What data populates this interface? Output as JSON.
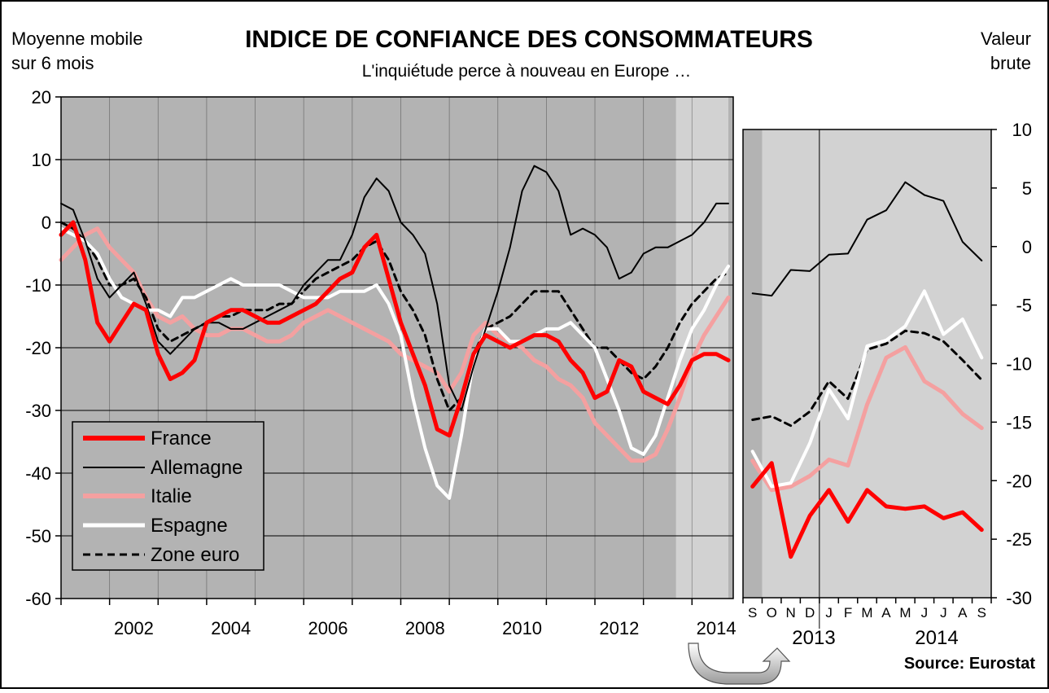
{
  "header": {
    "title": "INDICE DE CONFIANCE DES CONSOMMATEURS",
    "subtitle": "L'inquiétude perce à nouveau en Europe …",
    "left_note": [
      "Moyenne mobile",
      "sur 6 mois"
    ],
    "right_note": [
      "Valeur",
      "brute"
    ],
    "source": "Source: Eurostat"
  },
  "colors": {
    "france": "#ff0000",
    "allemagne": "#000000",
    "italie": "#f4a0a0",
    "espagne": "#ffffff",
    "zone_euro": "#000000",
    "plot_bg": "#b3b3b3",
    "plot_bg_highlight": "#d2d2d2"
  },
  "chart_data": [
    {
      "type": "line",
      "id": "main",
      "ylim": [
        -60,
        20
      ],
      "yticks": [
        20,
        10,
        0,
        -10,
        -20,
        -30,
        -40,
        -50,
        -60
      ],
      "xlim": [
        2001.0,
        2014.85
      ],
      "xticks": [
        "2002",
        "2004",
        "2006",
        "2008",
        "2010",
        "2012",
        "2014"
      ],
      "highlight_from": 2013.67,
      "grid": true,
      "legend": "bottom-left",
      "series": [
        {
          "name": "France",
          "key": "france",
          "style": "thick",
          "x": [
            2001.0,
            2001.25,
            2001.5,
            2001.75,
            2002.0,
            2002.25,
            2002.5,
            2002.75,
            2003.0,
            2003.25,
            2003.5,
            2003.75,
            2004.0,
            2004.25,
            2004.5,
            2004.75,
            2005.0,
            2005.25,
            2005.5,
            2005.75,
            2006.0,
            2006.25,
            2006.5,
            2006.75,
            2007.0,
            2007.25,
            2007.5,
            2007.75,
            2008.0,
            2008.25,
            2008.5,
            2008.75,
            2009.0,
            2009.25,
            2009.5,
            2009.75,
            2010.0,
            2010.25,
            2010.5,
            2010.75,
            2011.0,
            2011.25,
            2011.5,
            2011.75,
            2012.0,
            2012.25,
            2012.5,
            2012.75,
            2013.0,
            2013.25,
            2013.5,
            2013.75,
            2014.0,
            2014.25,
            2014.5,
            2014.75
          ],
          "y": [
            -2,
            0,
            -6,
            -16,
            -19,
            -16,
            -13,
            -14,
            -21,
            -25,
            -24,
            -22,
            -16,
            -15,
            -14,
            -14,
            -15,
            -16,
            -16,
            -15,
            -14,
            -13,
            -11,
            -9,
            -8,
            -4,
            -2,
            -9,
            -16,
            -21,
            -26,
            -33,
            -34,
            -28,
            -21,
            -18,
            -19,
            -20,
            -19,
            -18,
            -18,
            -19,
            -22,
            -24,
            -28,
            -27,
            -22,
            -23,
            -27,
            -28,
            -29,
            -26,
            -22,
            -21,
            -21,
            -22
          ]
        },
        {
          "name": "Allemagne",
          "key": "allemagne",
          "style": "thin",
          "x": [
            2001.0,
            2001.25,
            2001.5,
            2001.75,
            2002.0,
            2002.25,
            2002.5,
            2002.75,
            2003.0,
            2003.25,
            2003.5,
            2003.75,
            2004.0,
            2004.25,
            2004.5,
            2004.75,
            2005.0,
            2005.25,
            2005.5,
            2005.75,
            2006.0,
            2006.25,
            2006.5,
            2006.75,
            2007.0,
            2007.25,
            2007.5,
            2007.75,
            2008.0,
            2008.25,
            2008.5,
            2008.75,
            2009.0,
            2009.25,
            2009.5,
            2009.75,
            2010.0,
            2010.25,
            2010.5,
            2010.75,
            2011.0,
            2011.25,
            2011.5,
            2011.75,
            2012.0,
            2012.25,
            2012.5,
            2012.75,
            2013.0,
            2013.25,
            2013.5,
            2013.75,
            2014.0,
            2014.25,
            2014.5,
            2014.75
          ],
          "y": [
            3,
            2,
            -3,
            -9,
            -12,
            -10,
            -8,
            -13,
            -19,
            -21,
            -19,
            -17,
            -16,
            -16,
            -17,
            -17,
            -16,
            -15,
            -14,
            -13,
            -10,
            -8,
            -6,
            -6,
            -2,
            4,
            7,
            5,
            0,
            -2,
            -5,
            -13,
            -26,
            -30,
            -23,
            -17,
            -11,
            -4,
            5,
            9,
            8,
            5,
            -2,
            -1,
            -2,
            -4,
            -9,
            -8,
            -5,
            -4,
            -4,
            -3,
            -2,
            0,
            3,
            3
          ]
        },
        {
          "name": "Italie",
          "key": "italie",
          "style": "pale",
          "x": [
            2001.0,
            2001.25,
            2001.5,
            2001.75,
            2002.0,
            2002.25,
            2002.5,
            2002.75,
            2003.0,
            2003.25,
            2003.5,
            2003.75,
            2004.0,
            2004.25,
            2004.5,
            2004.75,
            2005.0,
            2005.25,
            2005.5,
            2005.75,
            2006.0,
            2006.25,
            2006.5,
            2006.75,
            2007.0,
            2007.25,
            2007.5,
            2007.75,
            2008.0,
            2008.25,
            2008.5,
            2008.75,
            2009.0,
            2009.25,
            2009.5,
            2009.75,
            2010.0,
            2010.25,
            2010.5,
            2010.75,
            2011.0,
            2011.25,
            2011.5,
            2011.75,
            2012.0,
            2012.25,
            2012.5,
            2012.75,
            2013.0,
            2013.25,
            2013.5,
            2013.75,
            2014.0,
            2014.25,
            2014.5,
            2014.75
          ],
          "y": [
            -6,
            -4,
            -2,
            -1,
            -4,
            -6,
            -8,
            -12,
            -15,
            -16,
            -15,
            -17,
            -18,
            -18,
            -17,
            -17,
            -18,
            -19,
            -19,
            -18,
            -16,
            -15,
            -14,
            -15,
            -16,
            -17,
            -18,
            -19,
            -21,
            -22,
            -23,
            -24,
            -27,
            -24,
            -18,
            -16,
            -18,
            -19,
            -20,
            -22,
            -23,
            -25,
            -26,
            -28,
            -32,
            -34,
            -36,
            -38,
            -38,
            -37,
            -33,
            -28,
            -22,
            -18,
            -15,
            -12
          ]
        },
        {
          "name": "Espagne",
          "key": "espagne",
          "style": "white",
          "x": [
            2001.0,
            2001.25,
            2001.5,
            2001.75,
            2002.0,
            2002.25,
            2002.5,
            2002.75,
            2003.0,
            2003.25,
            2003.5,
            2003.75,
            2004.0,
            2004.25,
            2004.5,
            2004.75,
            2005.0,
            2005.25,
            2005.5,
            2005.75,
            2006.0,
            2006.25,
            2006.5,
            2006.75,
            2007.0,
            2007.25,
            2007.5,
            2007.75,
            2008.0,
            2008.25,
            2008.5,
            2008.75,
            2009.0,
            2009.25,
            2009.5,
            2009.75,
            2010.0,
            2010.25,
            2010.5,
            2010.75,
            2011.0,
            2011.25,
            2011.5,
            2011.75,
            2012.0,
            2012.25,
            2012.5,
            2012.75,
            2013.0,
            2013.25,
            2013.5,
            2013.75,
            2014.0,
            2014.25,
            2014.5,
            2014.75
          ],
          "y": [
            -1,
            -2,
            -3,
            -5,
            -9,
            -12,
            -13,
            -14,
            -14,
            -15,
            -12,
            -12,
            -11,
            -10,
            -9,
            -10,
            -10,
            -10,
            -10,
            -11,
            -12,
            -12,
            -12,
            -11,
            -11,
            -11,
            -10,
            -13,
            -18,
            -28,
            -36,
            -42,
            -44,
            -34,
            -22,
            -17,
            -17,
            -19,
            -19,
            -18,
            -17,
            -17,
            -16,
            -18,
            -20,
            -25,
            -30,
            -36,
            -37,
            -34,
            -28,
            -22,
            -17,
            -14,
            -10,
            -7
          ]
        },
        {
          "name": "Zone euro",
          "key": "zone_euro",
          "style": "dashed",
          "x": [
            2001.0,
            2001.25,
            2001.5,
            2001.75,
            2002.0,
            2002.25,
            2002.5,
            2002.75,
            2003.0,
            2003.25,
            2003.5,
            2003.75,
            2004.0,
            2004.25,
            2004.5,
            2004.75,
            2005.0,
            2005.25,
            2005.5,
            2005.75,
            2006.0,
            2006.25,
            2006.5,
            2006.75,
            2007.0,
            2007.25,
            2007.5,
            2007.75,
            2008.0,
            2008.25,
            2008.5,
            2008.75,
            2009.0,
            2009.25,
            2009.5,
            2009.75,
            2010.0,
            2010.25,
            2010.5,
            2010.75,
            2011.0,
            2011.25,
            2011.5,
            2011.75,
            2012.0,
            2012.25,
            2012.5,
            2012.75,
            2013.0,
            2013.25,
            2013.5,
            2013.75,
            2014.0,
            2014.25,
            2014.5,
            2014.75
          ],
          "y": [
            0,
            -1,
            -3,
            -6,
            -10,
            -10,
            -9,
            -12,
            -17,
            -19,
            -18,
            -17,
            -16,
            -15,
            -15,
            -14,
            -14,
            -14,
            -13,
            -13,
            -11,
            -9,
            -8,
            -7,
            -6,
            -4,
            -3,
            -6,
            -11,
            -14,
            -18,
            -25,
            -30,
            -28,
            -21,
            -17,
            -16,
            -15,
            -13,
            -11,
            -11,
            -11,
            -14,
            -17,
            -20,
            -20,
            -22,
            -24,
            -25,
            -23,
            -20,
            -16,
            -13,
            -11,
            -9,
            -8
          ]
        }
      ]
    },
    {
      "type": "line",
      "id": "inset",
      "ylim": [
        -30,
        10
      ],
      "yticks": [
        10,
        5,
        0,
        -5,
        -10,
        -15,
        -20,
        -25,
        -30
      ],
      "categories": [
        "S",
        "O",
        "N",
        "D",
        "J",
        "F",
        "M",
        "A",
        "M",
        "J",
        "J",
        "A",
        "S"
      ],
      "year_labels": [
        "2013",
        "2014"
      ],
      "year_divider_after_index": 3,
      "highlight_first": true,
      "series": [
        {
          "key": "france",
          "style": "thick",
          "values": [
            -20.5,
            -18.5,
            -26.5,
            -23.0,
            -20.8,
            -23.5,
            -20.8,
            -22.2,
            -22.4,
            -22.2,
            -23.2,
            -22.7,
            -24.2
          ]
        },
        {
          "key": "allemagne",
          "style": "thin",
          "values": [
            -4.0,
            -4.2,
            -2.0,
            -2.1,
            -0.7,
            -0.6,
            2.3,
            3.1,
            5.5,
            4.4,
            3.9,
            0.4,
            -1.2
          ]
        },
        {
          "key": "italie",
          "style": "pale",
          "values": [
            -18.3,
            -20.8,
            -20.5,
            -19.6,
            -18.2,
            -18.7,
            -13.5,
            -9.5,
            -8.6,
            -11.5,
            -12.5,
            -14.3,
            -15.5
          ]
        },
        {
          "key": "espagne",
          "style": "white",
          "values": [
            -17.5,
            -20.5,
            -20.2,
            -16.8,
            -12.2,
            -14.7,
            -8.5,
            -8.0,
            -6.8,
            -3.8,
            -7.5,
            -6.2,
            -9.5
          ]
        },
        {
          "key": "zone_euro",
          "style": "dashed",
          "values": [
            -14.8,
            -14.5,
            -15.3,
            -14.1,
            -11.5,
            -13.0,
            -8.8,
            -8.3,
            -7.2,
            -7.4,
            -8.1,
            -9.7,
            -11.4
          ]
        }
      ]
    }
  ]
}
